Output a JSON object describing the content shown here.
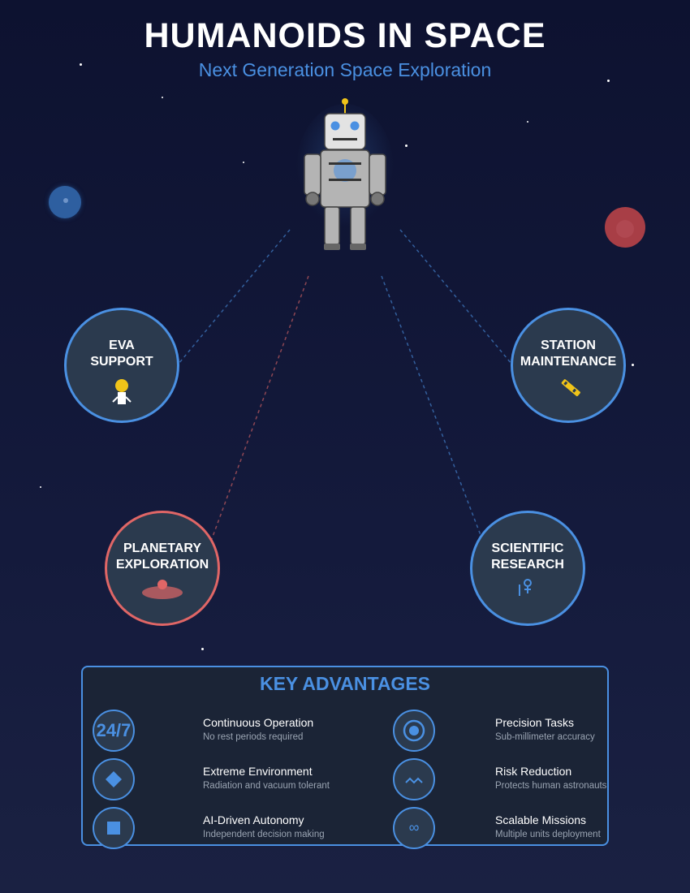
{
  "header": {
    "title": "HUMANOIDS IN SPACE",
    "subtitle": "Next Generation Space Exploration"
  },
  "colors": {
    "accent": "#4a90e2",
    "alert": "#e06666",
    "background": "#0d1230",
    "node_fill": "#2b3a4e"
  },
  "robot": {
    "name_icon": "robot-icon"
  },
  "capabilities": [
    {
      "label": "EVA\nSUPPORT",
      "icon": "astronaut-icon",
      "accent": "#4a90e2"
    },
    {
      "label": "STATION\nMAINTENANCE",
      "icon": "wrench-icon",
      "accent": "#4a90e2"
    },
    {
      "label": "PLANETARY\nEXPLORATION",
      "icon": "planet-surface-icon",
      "accent": "#e06666"
    },
    {
      "label": "SCIENTIFIC\nRESEARCH",
      "icon": "flask-icon",
      "accent": "#4a90e2"
    }
  ],
  "advantages": {
    "title": "KEY ADVANTAGES",
    "items": [
      {
        "badge": "24/7",
        "icon": "clock-icon",
        "name": "Continuous Operation",
        "desc": "No rest periods required"
      },
      {
        "badge": "",
        "icon": "target-icon",
        "name": "Precision Tasks",
        "desc": "Sub-millimeter accuracy"
      },
      {
        "badge": "",
        "icon": "diamond-icon",
        "name": "Extreme Environment",
        "desc": "Radiation and vacuum tolerant"
      },
      {
        "badge": "",
        "icon": "wave-icon",
        "name": "Risk Reduction",
        "desc": "Protects human astronauts"
      },
      {
        "badge": "",
        "icon": "square-icon",
        "name": "AI-Driven Autonomy",
        "desc": "Independent decision making"
      },
      {
        "badge": "∞",
        "icon": "infinity-icon",
        "name": "Scalable Missions",
        "desc": "Multiple units deployment"
      }
    ]
  }
}
